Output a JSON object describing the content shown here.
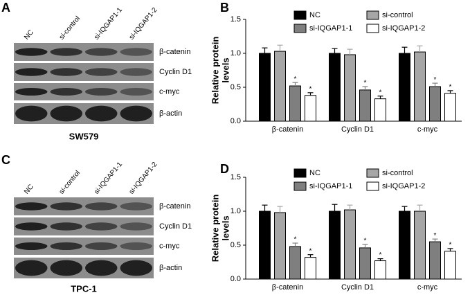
{
  "panels": [
    {
      "letter": "A",
      "lanes": [
        "NC",
        "si-control",
        "si-IQGAP1-1",
        "si-IQGAP1-2"
      ],
      "proteins": [
        "β-catenin",
        "Cyclin D1",
        "c-myc",
        "β-actin"
      ],
      "cell_line": "SW579"
    },
    {
      "letter": "C",
      "lanes": [
        "NC",
        "si-control",
        "si-IQGAP1-1",
        "si-IQGAP1-2"
      ],
      "proteins": [
        "β-catenin",
        "Cyclin D1",
        "c-myc",
        "β-actin"
      ],
      "cell_line": "TPC-1"
    }
  ],
  "chart_data": [
    {
      "type": "bar",
      "panel": "B",
      "ylabel": [
        "Relative protein",
        "levels"
      ],
      "categories": [
        "β-catenin",
        "Cyclin D1",
        "c-myc"
      ],
      "series": [
        {
          "name": "NC",
          "color": "#000000",
          "values": [
            1.0,
            1.0,
            1.0
          ],
          "errors": [
            0.08,
            0.07,
            0.09
          ]
        },
        {
          "name": "si-control",
          "color": "#a6a6a6",
          "values": [
            1.03,
            0.98,
            1.02
          ],
          "errors": [
            0.09,
            0.08,
            0.09
          ]
        },
        {
          "name": "si-IQGAP1-1",
          "color": "#7f7f7f",
          "values": [
            0.52,
            0.46,
            0.51
          ],
          "errors": [
            0.05,
            0.05,
            0.05
          ],
          "labels": [
            "*",
            "*",
            "*"
          ]
        },
        {
          "name": "si-IQGAP1-2",
          "color": "#ffffff",
          "values": [
            0.38,
            0.33,
            0.41
          ],
          "errors": [
            0.04,
            0.04,
            0.04
          ],
          "labels": [
            "*",
            "*",
            "*"
          ]
        }
      ],
      "ylim": [
        0,
        1.5
      ],
      "yticks": [
        {
          "value": 0,
          "label": "0.0"
        },
        {
          "value": 0.5,
          "label": "0.5"
        },
        {
          "value": 1,
          "label": "1.0"
        },
        {
          "value": 1.5,
          "label": "1.5"
        }
      ],
      "legend": "top"
    },
    {
      "type": "bar",
      "panel": "D",
      "ylabel": [
        "Relative protein",
        "levels"
      ],
      "categories": [
        "β-catenin",
        "Cyclin D1",
        "c-myc"
      ],
      "series": [
        {
          "name": "NC",
          "color": "#000000",
          "values": [
            1.0,
            1.0,
            1.0
          ],
          "errors": [
            0.09,
            0.1,
            0.07
          ]
        },
        {
          "name": "si-control",
          "color": "#a6a6a6",
          "values": [
            0.98,
            1.02,
            1.0
          ],
          "errors": [
            0.09,
            0.07,
            0.09
          ]
        },
        {
          "name": "si-IQGAP1-1",
          "color": "#7f7f7f",
          "values": [
            0.48,
            0.46,
            0.55
          ],
          "errors": [
            0.05,
            0.05,
            0.04
          ],
          "labels": [
            "*",
            "*",
            "*"
          ]
        },
        {
          "name": "si-IQGAP1-2",
          "color": "#ffffff",
          "values": [
            0.32,
            0.27,
            0.41
          ],
          "errors": [
            0.04,
            0.03,
            0.04
          ],
          "labels": [
            "*",
            "*",
            "*"
          ]
        }
      ],
      "ylim": [
        0,
        1.5
      ],
      "yticks": [
        {
          "value": 0,
          "label": "0.0"
        },
        {
          "value": 0.5,
          "label": "0.5"
        },
        {
          "value": 1,
          "label": "1.0"
        },
        {
          "value": 1.5,
          "label": "1.5"
        }
      ],
      "legend": "top"
    }
  ]
}
